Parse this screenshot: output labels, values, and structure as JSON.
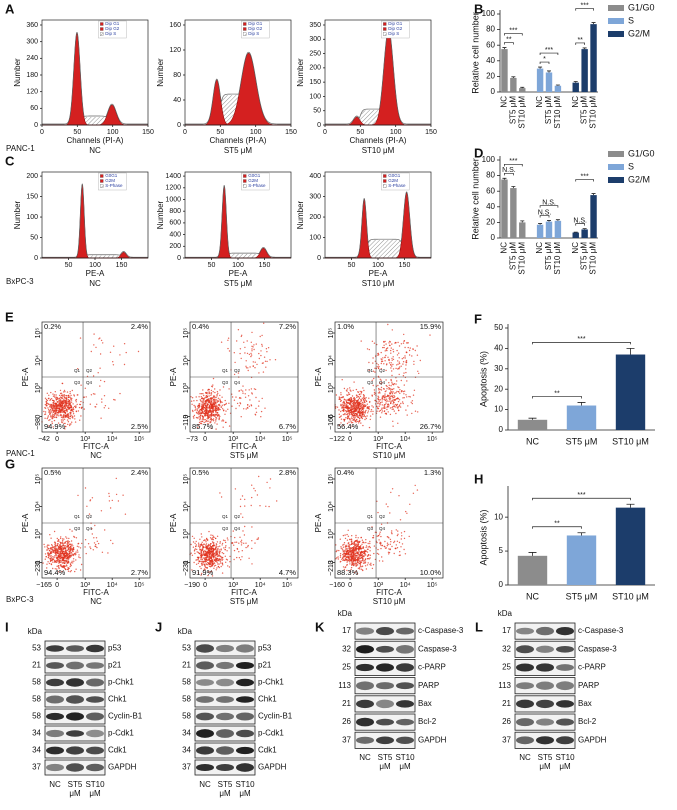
{
  "chart_data": [
    {
      "type": "bar",
      "panel": "B",
      "ylabel": "Relative cell number",
      "categories": [
        "NC",
        "ST5 μM",
        "ST10 μM"
      ],
      "series": [
        {
          "name": "G1/G0",
          "color": "#8c8c8c",
          "values": [
            55,
            18,
            5
          ],
          "errors": [
            2,
            1.5,
            1
          ]
        },
        {
          "name": "S",
          "color": "#7ea6d8",
          "values": [
            30,
            25,
            8
          ],
          "errors": [
            2,
            2,
            1
          ]
        },
        {
          "name": "G2/M",
          "color": "#1c3d6b",
          "values": [
            12,
            55,
            87
          ],
          "errors": [
            1.5,
            1.5,
            2
          ]
        }
      ],
      "ylim": [
        0,
        100
      ],
      "yticks": [
        0,
        20,
        40,
        60,
        80,
        100
      ],
      "legend": "upper right",
      "annotations": [
        "**",
        "***",
        "*",
        "***",
        "**",
        "***"
      ]
    },
    {
      "type": "bar",
      "panel": "D",
      "ylabel": "Relative cell number",
      "categories": [
        "NC",
        "ST5 μM",
        "ST10 μM"
      ],
      "series": [
        {
          "name": "G1/G0",
          "color": "#8c8c8c",
          "values": [
            75,
            64,
            20
          ],
          "errors": [
            1.5,
            2,
            2
          ]
        },
        {
          "name": "S",
          "color": "#7ea6d8",
          "values": [
            17,
            21,
            22
          ],
          "errors": [
            1.5,
            1.5,
            1.5
          ]
        },
        {
          "name": "G2/M",
          "color": "#1c3d6b",
          "values": [
            7,
            11,
            55
          ],
          "errors": [
            0.5,
            1,
            2
          ]
        }
      ],
      "ylim": [
        0,
        100
      ],
      "yticks": [
        0,
        20,
        40,
        60,
        80,
        100
      ],
      "legend": "upper right",
      "annotations": [
        "N.S.",
        "***",
        "N.S.",
        "N.S.",
        "N.S.",
        "***"
      ]
    },
    {
      "type": "bar",
      "panel": "F",
      "ylabel": "Apoptosis (%)",
      "categories": [
        "NC",
        "ST5 μM",
        "ST10 μM"
      ],
      "values": [
        5,
        12,
        37
      ],
      "errors": [
        0.8,
        1.5,
        3
      ],
      "colors": [
        "#8c8c8c",
        "#7ea6d8",
        "#1c3d6b"
      ],
      "ylim": [
        0,
        50
      ],
      "yticks": [
        0,
        10,
        20,
        30,
        40,
        50
      ],
      "annotations": [
        "**",
        "***"
      ]
    },
    {
      "type": "bar",
      "panel": "H",
      "ylabel": "Apoptosis (%)",
      "categories": [
        "NC",
        "ST5 μM",
        "ST10 μM"
      ],
      "values": [
        4.3,
        7.3,
        11.4
      ],
      "errors": [
        0.5,
        0.4,
        0.5
      ],
      "colors": [
        "#8c8c8c",
        "#7ea6d8",
        "#1c3d6b"
      ],
      "ylim": [
        0,
        14
      ],
      "yticks": [
        0,
        5,
        10
      ],
      "annotations": [
        "**",
        "***"
      ]
    }
  ],
  "flow_histograms": [
    {
      "panel": "A",
      "cell": "PANC-1",
      "xlabel": "Channels (PI-A)",
      "ylabel": "Number",
      "xticks": [
        0,
        50,
        100,
        150
      ],
      "legend": [
        "Dip G1",
        "Dip G2",
        "Dip S"
      ],
      "plots": [
        {
          "group": "NC",
          "yticks": [
            0,
            60,
            120,
            180,
            240,
            300,
            360
          ]
        },
        {
          "group": "ST5 μM",
          "yticks": [
            0,
            40,
            80,
            120,
            160
          ]
        },
        {
          "group": "ST10 μM",
          "yticks": [
            0,
            50,
            100,
            150,
            200,
            250,
            300,
            350
          ]
        }
      ]
    },
    {
      "panel": "C",
      "cell": "BxPC-3",
      "xlabel": "PE-A",
      "ylabel": "Number",
      "xticks": [
        50,
        100,
        150
      ],
      "legend": [
        "G0G1",
        "G2M",
        "S-Phase"
      ],
      "plots": [
        {
          "group": "NC",
          "yticks": [
            0,
            50,
            100,
            150,
            200
          ]
        },
        {
          "group": "ST5 μM",
          "yticks": [
            0,
            200,
            400,
            600,
            800,
            1000,
            1200,
            1400
          ]
        },
        {
          "group": "ST10 μM",
          "yticks": [
            0,
            100,
            200,
            300,
            400
          ]
        }
      ]
    }
  ],
  "flow_scatter": [
    {
      "panel": "E",
      "cell": "PANC-1",
      "xlabel": "FITC-A",
      "ylabel": "PE-A",
      "quadrant_names": [
        "Q1",
        "Q2",
        "Q3",
        "Q4"
      ],
      "ticks": [
        "0",
        "10³",
        "10⁴",
        "10⁵"
      ],
      "plots": [
        {
          "group": "NC",
          "xmin": "−42",
          "ymin": "−98",
          "quadrants": [
            "0.2%",
            "2.4%",
            "94.9%",
            "2.5%"
          ]
        },
        {
          "group": "ST5 μM",
          "xmin": "−73",
          "ymin": "−119",
          "quadrants": [
            "0.4%",
            "7.2%",
            "85.7%",
            "6.7%"
          ]
        },
        {
          "group": "ST10 μM",
          "xmin": "−122",
          "ymin": "−166",
          "quadrants": [
            "1.0%",
            "15.9%",
            "56.4%",
            "26.7%"
          ]
        }
      ]
    },
    {
      "panel": "G",
      "cell": "BxPC-3",
      "xlabel": "FITC-A",
      "ylabel": "PE-A",
      "quadrant_names": [
        "Q1",
        "Q2",
        "Q3",
        "Q4"
      ],
      "ticks": [
        "0",
        "10³",
        "10⁴",
        "10⁵"
      ],
      "plots": [
        {
          "group": "NC",
          "xmin": "−165",
          "ymin": "−231",
          "quadrants": [
            "0.5%",
            "2.4%",
            "94.4%",
            "2.7%"
          ]
        },
        {
          "group": "ST5 μM",
          "xmin": "−190",
          "ymin": "−231",
          "quadrants": [
            "0.5%",
            "2.8%",
            "91.9%",
            "4.7%"
          ]
        },
        {
          "group": "ST10 μM",
          "xmin": "−160",
          "ymin": "−213",
          "quadrants": [
            "0.4%",
            "1.3%",
            "88.3%",
            "10.0%"
          ]
        }
      ]
    }
  ],
  "blots": [
    {
      "panel": "I",
      "unit": "kDa",
      "markers": [
        53,
        21,
        58,
        58,
        58,
        34,
        34,
        37
      ],
      "proteins": [
        "p53",
        "p21",
        "p-Chk1",
        "Chk1",
        "Cyclin-B1",
        "p-Cdk1",
        "Cdk1",
        "GAPDH"
      ],
      "lanes": [
        "NC",
        "ST5 μM",
        "ST10 μM"
      ]
    },
    {
      "panel": "J",
      "unit": "kDa",
      "markers": [
        53,
        21,
        58,
        58,
        58,
        34,
        34,
        37
      ],
      "proteins": [
        "p53",
        "p21",
        "p-Chk1",
        "Chk1",
        "Cyclin-B1",
        "p-Cdk1",
        "Cdk1",
        "GAPDH"
      ],
      "lanes": [
        "NC",
        "ST5 μM",
        "ST10 μM"
      ]
    },
    {
      "panel": "K",
      "unit": "kDa",
      "markers": [
        17,
        32,
        25,
        113,
        21,
        26,
        37
      ],
      "proteins": [
        "c-Caspase-3",
        "Caspase-3",
        "c-PARP",
        "PARP",
        "Bax",
        "Bcl-2",
        "GAPDH"
      ],
      "lanes": [
        "NC",
        "ST5 μM",
        "ST10 μM"
      ]
    },
    {
      "panel": "L",
      "unit": "kDa",
      "markers": [
        17,
        32,
        25,
        113,
        21,
        26,
        37
      ],
      "proteins": [
        "c-Caspase-3",
        "Caspase-3",
        "c-PARP",
        "PARP",
        "Bax",
        "Bcl-2",
        "GAPDH"
      ],
      "lanes": [
        "NC",
        "ST5 μM",
        "ST10 μM"
      ]
    }
  ]
}
